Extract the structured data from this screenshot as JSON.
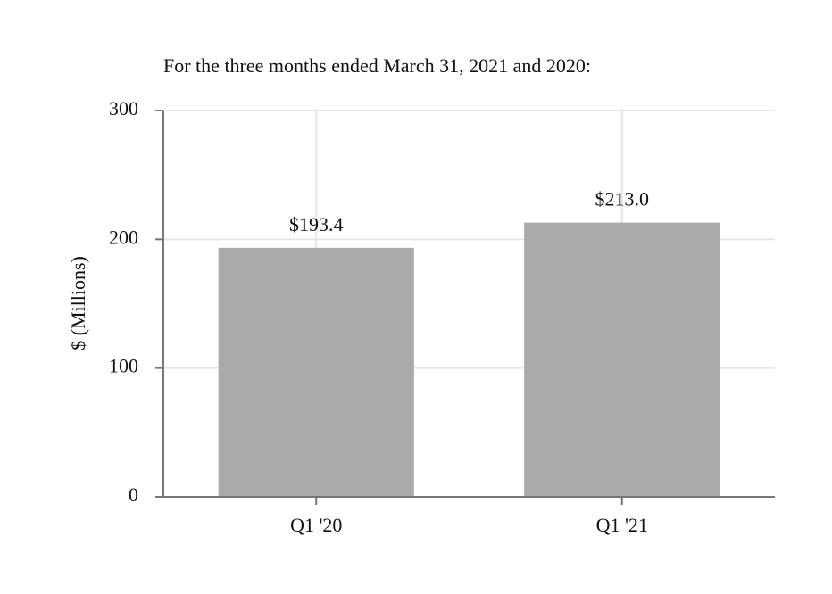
{
  "chart_data": {
    "type": "bar",
    "title": "For the three months ended March 31, 2021 and 2020:",
    "ylabel": "$ (Millions)",
    "categories": [
      "Q1 '20",
      "Q1 '21"
    ],
    "values": [
      193.4,
      213.0
    ],
    "value_labels": [
      "$193.4",
      "$213.0"
    ],
    "color": "#aaaaaa",
    "ylim": [
      0,
      300
    ],
    "yticks": [
      0,
      100,
      200,
      300
    ],
    "grid": true
  }
}
